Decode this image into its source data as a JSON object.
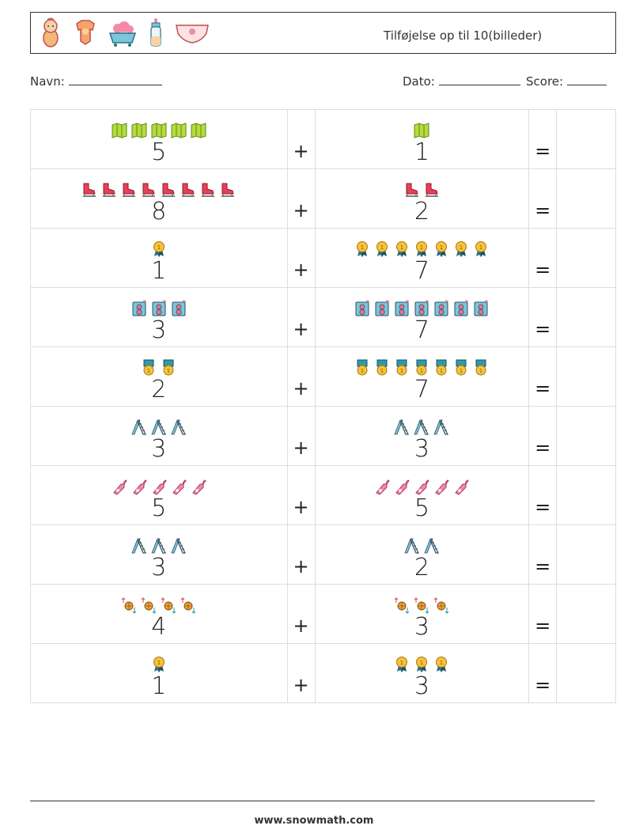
{
  "header": {
    "title": "Tilføjelse op til 10(billeder)",
    "icons": [
      "baby-icon",
      "bodysuit-icon",
      "baby-bath-icon",
      "baby-bottle-icon",
      "diaper-icon"
    ]
  },
  "meta": {
    "name_label": "Navn:",
    "date_label": "Dato:",
    "score_label": "Score:"
  },
  "operators": {
    "plus": "+",
    "equals": "="
  },
  "rows": [
    {
      "a": 5,
      "b": 1,
      "a_icon": "folded-map-icon",
      "b_icon": "folded-map-icon"
    },
    {
      "a": 8,
      "b": 2,
      "a_icon": "ice-skate-icon",
      "b_icon": "ice-skate-icon"
    },
    {
      "a": 1,
      "b": 7,
      "a_icon": "medal-icon",
      "b_icon": "medal-icon"
    },
    {
      "a": 3,
      "b": 7,
      "a_icon": "speaker-icon",
      "b_icon": "speaker-icon"
    },
    {
      "a": 2,
      "b": 7,
      "a_icon": "medal-ribbon-icon",
      "b_icon": "medal-ribbon-icon"
    },
    {
      "a": 3,
      "b": 3,
      "a_icon": "ladder-icon",
      "b_icon": "ladder-icon"
    },
    {
      "a": 5,
      "b": 5,
      "a_icon": "champagne-bottle-icon",
      "b_icon": "champagne-bottle-icon"
    },
    {
      "a": 3,
      "b": 2,
      "a_icon": "ladder-icon",
      "b_icon": "ladder-icon"
    },
    {
      "a": 4,
      "b": 3,
      "a_icon": "basketball-arrows-icon",
      "b_icon": "basketball-arrows-icon"
    },
    {
      "a": 1,
      "b": 3,
      "a_icon": "medal-icon",
      "b_icon": "medal-icon"
    }
  ],
  "footer": {
    "url": "www.snowmath.com"
  }
}
